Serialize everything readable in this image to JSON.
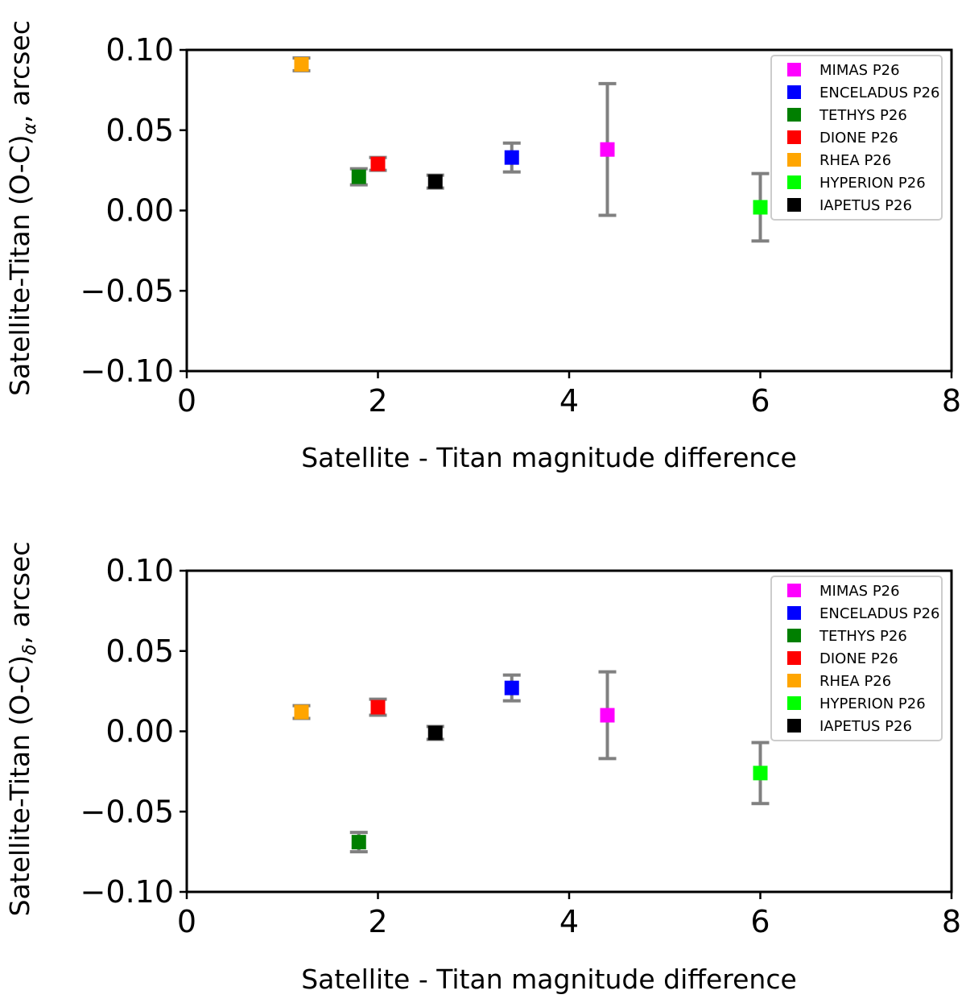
{
  "chart_data": [
    {
      "type": "scatter",
      "xlabel": "Satellite - Titan magnitude difference",
      "ylabel_main": "Satellite-Titan (O-C)",
      "ylabel_sub": "α",
      "ylabel_tail": ", arcsec",
      "xlim": [
        0,
        8
      ],
      "ylim": [
        -0.1,
        0.1
      ],
      "xticks": [
        0,
        2,
        4,
        6,
        8
      ],
      "xtick_labels": [
        "0",
        "2",
        "4",
        "6",
        "8"
      ],
      "yticks": [
        0.1,
        0.05,
        0.0,
        -0.05,
        -0.1
      ],
      "ytick_labels": [
        "0.10",
        "0.05",
        "0.00",
        "−0.05",
        "−0.10"
      ],
      "grid": false,
      "legend_position": "top-right",
      "series": [
        {
          "name": "MIMAS P26",
          "color": "#ff00ff",
          "x": 4.4,
          "y": 0.038,
          "err": 0.041
        },
        {
          "name": "ENCELADUS P26",
          "color": "#0000ff",
          "x": 3.4,
          "y": 0.033,
          "err": 0.009
        },
        {
          "name": "TETHYS P26",
          "color": "#007f00",
          "x": 1.8,
          "y": 0.021,
          "err": 0.005
        },
        {
          "name": "DIONE P26",
          "color": "#ff0000",
          "x": 2.0,
          "y": 0.029,
          "err": 0.004
        },
        {
          "name": "RHEA P26",
          "color": "#ffa500",
          "x": 1.2,
          "y": 0.091,
          "err": 0.004
        },
        {
          "name": "HYPERION P26",
          "color": "#00ff00",
          "x": 6.0,
          "y": 0.002,
          "err": 0.021
        },
        {
          "name": "IAPETUS P26",
          "color": "#000000",
          "x": 2.6,
          "y": 0.018,
          "err": 0.004
        }
      ]
    },
    {
      "type": "scatter",
      "xlabel": "Satellite - Titan magnitude difference",
      "ylabel_main": "Satellite-Titan (O-C)",
      "ylabel_sub": "δ",
      "ylabel_tail": ", arcsec",
      "xlim": [
        0,
        8
      ],
      "ylim": [
        -0.1,
        0.1
      ],
      "xticks": [
        0,
        2,
        4,
        6,
        8
      ],
      "xtick_labels": [
        "0",
        "2",
        "4",
        "6",
        "8"
      ],
      "yticks": [
        0.1,
        0.05,
        0.0,
        -0.05,
        -0.1
      ],
      "ytick_labels": [
        "0.10",
        "0.05",
        "0.00",
        "−0.05",
        "−0.10"
      ],
      "grid": false,
      "legend_position": "top-right",
      "series": [
        {
          "name": "MIMAS P26",
          "color": "#ff00ff",
          "x": 4.4,
          "y": 0.01,
          "err": 0.027
        },
        {
          "name": "ENCELADUS P26",
          "color": "#0000ff",
          "x": 3.4,
          "y": 0.027,
          "err": 0.008
        },
        {
          "name": "TETHYS P26",
          "color": "#007f00",
          "x": 1.8,
          "y": -0.069,
          "err": 0.006
        },
        {
          "name": "DIONE P26",
          "color": "#ff0000",
          "x": 2.0,
          "y": 0.015,
          "err": 0.005
        },
        {
          "name": "RHEA P26",
          "color": "#ffa500",
          "x": 1.2,
          "y": 0.012,
          "err": 0.004
        },
        {
          "name": "HYPERION P26",
          "color": "#00ff00",
          "x": 6.0,
          "y": -0.026,
          "err": 0.019
        },
        {
          "name": "IAPETUS P26",
          "color": "#000000",
          "x": 2.6,
          "y": -0.001,
          "err": 0.004
        }
      ]
    }
  ]
}
